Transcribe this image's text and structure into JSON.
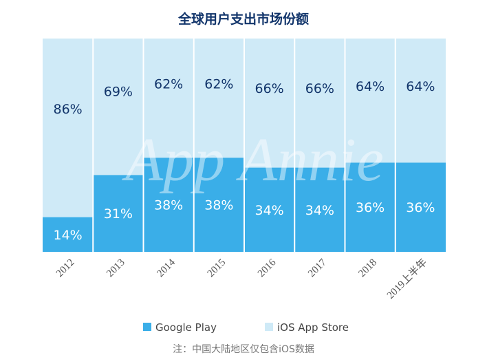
{
  "chart_data": {
    "type": "bar",
    "stacked": true,
    "percent": true,
    "title": "全球用户支出市场份额",
    "categories": [
      "2012",
      "2013",
      "2014",
      "2015",
      "2016",
      "2017",
      "2018",
      "2019上半年"
    ],
    "series": [
      {
        "name": "Google Play",
        "color": "#3aaee8",
        "values": [
          14,
          31,
          38,
          38,
          34,
          34,
          36,
          36
        ]
      },
      {
        "name": "iOS App Store",
        "color": "#cfeaf7",
        "values": [
          86,
          69,
          62,
          62,
          66,
          66,
          64,
          64
        ]
      }
    ],
    "value_suffix": "%",
    "ylim": [
      0,
      100
    ],
    "legend_position": "bottom",
    "watermark": "App Annie",
    "note": "注：中国大陆地区仅包含iOS数据"
  }
}
